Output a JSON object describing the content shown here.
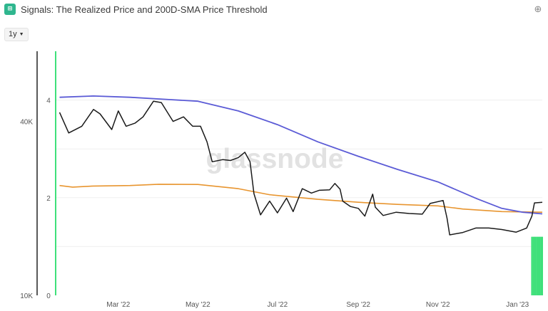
{
  "header": {
    "title": "Signals: The Realized Price and 200D-SMA Price Threshold",
    "app_icon": "signals-grid-icon",
    "zoom_icon": "zoom-in-icon"
  },
  "range_selector": {
    "value": "1y"
  },
  "watermark": "glassnode",
  "colors": {
    "price": "#1a1a1a",
    "sma200": "#5b5bd6",
    "realized": "#e8952f",
    "signal": "#3fe07a",
    "axis": "#222222",
    "grid": "#efefef"
  },
  "chart_data": {
    "type": "line",
    "title": "Signals: The Realized Price and 200D-SMA Price Threshold",
    "x_type": "date",
    "x_range": [
      "2022-01-12",
      "2023-01-20"
    ],
    "x_ticks": [
      {
        "date": "2022-03-01",
        "label": "Mar '22"
      },
      {
        "date": "2022-05-01",
        "label": "May '22"
      },
      {
        "date": "2022-07-01",
        "label": "Jul '22"
      },
      {
        "date": "2022-09-01",
        "label": "Sep '22"
      },
      {
        "date": "2022-11-01",
        "label": "Nov '22"
      },
      {
        "date": "2023-01-01",
        "label": "Jan '23"
      }
    ],
    "y_left": {
      "scale": "log",
      "range": [
        10000,
        70000
      ],
      "ticks": [
        {
          "value": 10000,
          "label": "10K"
        },
        {
          "value": 40000,
          "label": "40K"
        }
      ]
    },
    "y_right": {
      "scale": "linear",
      "range": [
        0,
        5
      ],
      "ticks": [
        {
          "value": 0,
          "label": "0"
        },
        {
          "value": 2,
          "label": "2"
        },
        {
          "value": 4,
          "label": "4"
        }
      ]
    },
    "grid": true,
    "series": [
      {
        "key": "price",
        "axis": "left",
        "points": [
          [
            "2022-01-15",
            43000
          ],
          [
            "2022-01-22",
            36500
          ],
          [
            "2022-02-01",
            38500
          ],
          [
            "2022-02-10",
            44000
          ],
          [
            "2022-02-15",
            42500
          ],
          [
            "2022-02-24",
            37500
          ],
          [
            "2022-03-01",
            43500
          ],
          [
            "2022-03-07",
            38500
          ],
          [
            "2022-03-14",
            39500
          ],
          [
            "2022-03-20",
            41500
          ],
          [
            "2022-03-28",
            47000
          ],
          [
            "2022-04-03",
            46500
          ],
          [
            "2022-04-12",
            40000
          ],
          [
            "2022-04-20",
            41500
          ],
          [
            "2022-04-27",
            38500
          ],
          [
            "2022-05-03",
            38500
          ],
          [
            "2022-05-08",
            34000
          ],
          [
            "2022-05-12",
            29000
          ],
          [
            "2022-05-20",
            29500
          ],
          [
            "2022-05-26",
            29300
          ],
          [
            "2022-06-01",
            30000
          ],
          [
            "2022-06-06",
            31300
          ],
          [
            "2022-06-10",
            29000
          ],
          [
            "2022-06-13",
            22500
          ],
          [
            "2022-06-18",
            19000
          ],
          [
            "2022-06-25",
            21200
          ],
          [
            "2022-07-01",
            19300
          ],
          [
            "2022-07-08",
            21700
          ],
          [
            "2022-07-13",
            19500
          ],
          [
            "2022-07-20",
            23400
          ],
          [
            "2022-07-27",
            22600
          ],
          [
            "2022-08-02",
            23100
          ],
          [
            "2022-08-10",
            23200
          ],
          [
            "2022-08-14",
            24400
          ],
          [
            "2022-08-18",
            23300
          ],
          [
            "2022-08-20",
            21200
          ],
          [
            "2022-08-26",
            20300
          ],
          [
            "2022-09-01",
            20000
          ],
          [
            "2022-09-06",
            18800
          ],
          [
            "2022-09-12",
            22400
          ],
          [
            "2022-09-14",
            20200
          ],
          [
            "2022-09-20",
            18900
          ],
          [
            "2022-09-30",
            19400
          ],
          [
            "2022-10-10",
            19200
          ],
          [
            "2022-10-20",
            19100
          ],
          [
            "2022-10-26",
            20800
          ],
          [
            "2022-11-05",
            21300
          ],
          [
            "2022-11-08",
            18500
          ],
          [
            "2022-11-10",
            16200
          ],
          [
            "2022-11-20",
            16500
          ],
          [
            "2022-11-30",
            17100
          ],
          [
            "2022-12-10",
            17100
          ],
          [
            "2022-12-20",
            16900
          ],
          [
            "2022-12-31",
            16550
          ],
          [
            "2023-01-08",
            17100
          ],
          [
            "2023-01-12",
            18800
          ],
          [
            "2023-01-14",
            20900
          ],
          [
            "2023-01-20",
            21000
          ]
        ]
      },
      {
        "key": "sma200",
        "axis": "left",
        "points": [
          [
            "2022-01-15",
            48500
          ],
          [
            "2022-02-10",
            49000
          ],
          [
            "2022-03-10",
            48500
          ],
          [
            "2022-04-10",
            47600
          ],
          [
            "2022-05-01",
            47000
          ],
          [
            "2022-06-01",
            43500
          ],
          [
            "2022-07-01",
            39000
          ],
          [
            "2022-08-01",
            34000
          ],
          [
            "2022-09-01",
            30300
          ],
          [
            "2022-10-01",
            27300
          ],
          [
            "2022-11-01",
            24700
          ],
          [
            "2022-12-01",
            21600
          ],
          [
            "2022-12-20",
            20000
          ],
          [
            "2023-01-05",
            19400
          ],
          [
            "2023-01-20",
            19150
          ]
        ]
      },
      {
        "key": "realized",
        "axis": "left",
        "points": [
          [
            "2022-01-15",
            24000
          ],
          [
            "2022-01-25",
            23700
          ],
          [
            "2022-02-10",
            23900
          ],
          [
            "2022-03-10",
            24000
          ],
          [
            "2022-04-01",
            24250
          ],
          [
            "2022-05-01",
            24200
          ],
          [
            "2022-06-01",
            23400
          ],
          [
            "2022-06-25",
            22300
          ],
          [
            "2022-08-01",
            21500
          ],
          [
            "2022-09-01",
            21000
          ],
          [
            "2022-10-01",
            20650
          ],
          [
            "2022-11-01",
            20400
          ],
          [
            "2022-11-20",
            19900
          ],
          [
            "2022-12-20",
            19500
          ],
          [
            "2023-01-20",
            19400
          ]
        ]
      },
      {
        "key": "signal",
        "axis": "right",
        "type": "bar",
        "points": [
          [
            "2022-01-12",
            5
          ],
          [
            "2023-01-12",
            1.2
          ],
          [
            "2023-01-13",
            1.2
          ],
          [
            "2023-01-14",
            1.2
          ],
          [
            "2023-01-15",
            1.2
          ],
          [
            "2023-01-16",
            1.2
          ],
          [
            "2023-01-17",
            1.2
          ],
          [
            "2023-01-18",
            1.2
          ],
          [
            "2023-01-19",
            1.2
          ],
          [
            "2023-01-20",
            1.2
          ]
        ]
      }
    ]
  }
}
